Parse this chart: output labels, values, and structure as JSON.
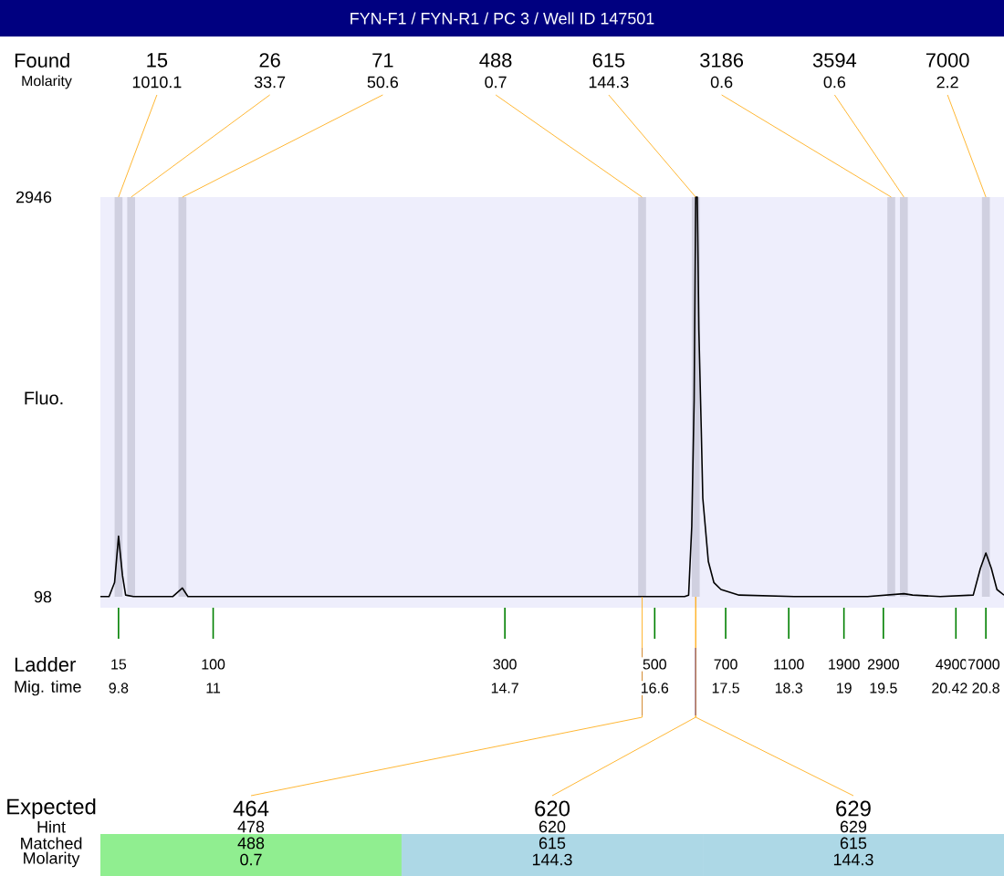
{
  "chart_data": {
    "type": "line",
    "title": "FYN-F1 / FYN-R1 / PC 3 / Well ID 147501",
    "ylabel": "Fluo.",
    "xlabel": "Mig. time",
    "color": "#000000",
    "line_style": "solid",
    "marker": "none",
    "x": [
      9.57,
      9.68,
      9.75,
      9.8,
      9.85,
      9.89,
      9.99,
      10.49,
      10.61,
      10.68,
      10.96,
      14.2,
      16.98,
      17.03,
      17.07,
      17.1,
      17.12,
      17.14,
      17.16,
      17.19,
      17.21,
      17.28,
      17.35,
      17.44,
      17.67,
      18.37,
      19.3,
      19.53,
      19.76,
      19.87,
      20.22,
      20.64,
      20.73,
      20.8,
      20.87,
      20.94,
      21.03
    ],
    "values": [
      100,
      100,
      200,
      530,
      250,
      110,
      100,
      100,
      160,
      100,
      100,
      100,
      100,
      110,
      600,
      1500,
      2946,
      2946,
      2000,
      1300,
      800,
      350,
      200,
      150,
      110,
      100,
      100,
      110,
      120,
      110,
      100,
      110,
      300,
      410,
      300,
      150,
      110
    ],
    "xlim": [
      9.57,
      21.03
    ],
    "ylim": [
      98,
      2946
    ],
    "yticks": [
      98,
      2946
    ],
    "xticks": [
      9.8,
      11,
      14.7,
      16.6,
      17.5,
      18.3,
      19,
      19.5,
      20.42,
      20.8
    ],
    "bands": [
      {
        "axis": "x",
        "from": 9.75,
        "to": 9.85,
        "color": "#d0d0e0"
      },
      {
        "axis": "x",
        "from": 9.91,
        "to": 10.01,
        "color": "#d0d0e0"
      },
      {
        "axis": "x",
        "from": 10.56,
        "to": 10.66,
        "color": "#d0d0e0"
      },
      {
        "axis": "x",
        "from": 16.39,
        "to": 16.49,
        "color": "#d0d0e0"
      },
      {
        "axis": "x",
        "from": 17.07,
        "to": 17.17,
        "color": "#d0d0e0"
      },
      {
        "axis": "x",
        "from": 19.55,
        "to": 19.65,
        "color": "#d0d0e0"
      },
      {
        "axis": "x",
        "from": 19.71,
        "to": 19.81,
        "color": "#d0d0e0"
      },
      {
        "axis": "x",
        "from": 20.75,
        "to": 20.85,
        "color": "#d0d0e0"
      }
    ],
    "annotations": [
      "Found",
      "Molarity",
      "15",
      "26",
      "71",
      "488",
      "615",
      "3186",
      "3594",
      "7000",
      {
        "text": "1010.1",
        "x": 9.8,
        "y": 2946
      },
      {
        "text": "33.7",
        "x": 9.96,
        "y": 2946
      },
      {
        "text": "50.6",
        "x": 10.61,
        "y": 2946
      },
      {
        "text": "0.7",
        "x": 16.44,
        "y": 2946
      },
      {
        "text": "144.3",
        "x": 17.12,
        "y": 2946
      },
      {
        "text": "0.6",
        "x": 19.6,
        "y": 2946
      },
      {
        "text": "0.6",
        "x": 19.76,
        "y": 2946
      },
      {
        "text": "2.2",
        "x": 20.8,
        "y": 2946
      },
      "Ladder",
      "15",
      "100",
      "300",
      "500",
      "700",
      "1100",
      "1900",
      "2900",
      "4900",
      "7000",
      "Expected",
      "Hint",
      "Matched",
      "Molarity",
      {
        "text": "464",
        "x": 16.44,
        "y": 98
      },
      "478",
      "488",
      "0.7",
      {
        "text": "620",
        "x": 17.12,
        "y": 98
      },
      "620",
      "615",
      "144.3",
      {
        "text": "629",
        "x": 17.12,
        "y": 98
      },
      "629",
      "615",
      "144.3"
    ]
  }
}
